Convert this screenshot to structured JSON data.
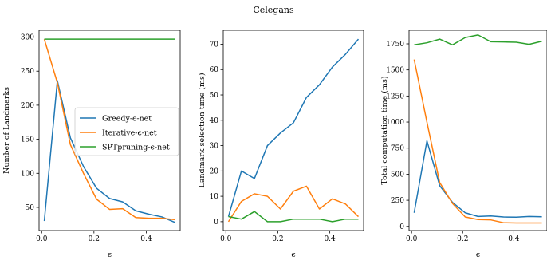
{
  "figure": {
    "title": "Celegans"
  },
  "colors": {
    "greedy": "#1f77b4",
    "iterative": "#ff7f0e",
    "spt": "#2ca02c"
  },
  "legend": {
    "placement": "center-right of first panel",
    "entries": [
      "Greedy-ϵ-net",
      "Iterative-ϵ-net",
      "SPTpruning-ϵ-net"
    ]
  },
  "chart_data": [
    {
      "type": "line",
      "title": "",
      "xlabel": "ϵ",
      "ylabel": "Number of Landmarks",
      "xlim": [
        -0.01,
        0.53
      ],
      "ylim": [
        16,
        310
      ],
      "xticks": [
        0.0,
        0.2,
        0.4
      ],
      "xtick_labels": [
        "0.0",
        "0.2",
        "0.4"
      ],
      "yticks": [
        50,
        100,
        150,
        200,
        250,
        300
      ],
      "ytick_labels": [
        "50",
        "100",
        "150",
        "200",
        "250",
        "300"
      ],
      "grid": false,
      "legend": true,
      "x": [
        0.01,
        0.06,
        0.11,
        0.16,
        0.21,
        0.26,
        0.31,
        0.36,
        0.41,
        0.46,
        0.51
      ],
      "series": [
        {
          "name": "Greedy-ϵ-net",
          "color_key": "greedy",
          "values": [
            30,
            236,
            152,
            110,
            78,
            63,
            58,
            45,
            40,
            36,
            28
          ]
        },
        {
          "name": "Iterative-ϵ-net",
          "color_key": "iterative",
          "values": [
            297,
            233,
            142,
            100,
            62,
            47,
            48,
            35,
            34,
            34,
            32
          ]
        },
        {
          "name": "SPTpruning-ϵ-net",
          "color_key": "spt",
          "values": [
            297,
            297,
            297,
            297,
            297,
            297,
            297,
            297,
            297,
            297,
            297
          ]
        }
      ]
    },
    {
      "type": "line",
      "title": "",
      "xlabel": "ϵ",
      "ylabel": "Landmark selection time (ms)",
      "xlim": [
        -0.01,
        0.53
      ],
      "ylim": [
        -3.5,
        75.5
      ],
      "xticks": [
        0.0,
        0.2,
        0.4
      ],
      "xtick_labels": [
        "0.0",
        "0.2",
        "0.4"
      ],
      "yticks": [
        0,
        10,
        20,
        30,
        40,
        50,
        60,
        70
      ],
      "ytick_labels": [
        "0",
        "10",
        "20",
        "30",
        "40",
        "50",
        "60",
        "70"
      ],
      "grid": false,
      "legend": false,
      "x": [
        0.01,
        0.06,
        0.11,
        0.16,
        0.21,
        0.26,
        0.31,
        0.36,
        0.41,
        0.46,
        0.51
      ],
      "series": [
        {
          "name": "Greedy-ϵ-net",
          "color_key": "greedy",
          "values": [
            2,
            20,
            17,
            30,
            35,
            39,
            49,
            54,
            61,
            66,
            72
          ]
        },
        {
          "name": "Iterative-ϵ-net",
          "color_key": "iterative",
          "values": [
            0,
            8,
            11,
            10,
            5,
            12,
            14,
            5,
            9,
            7,
            2
          ]
        },
        {
          "name": "SPTpruning-ϵ-net",
          "color_key": "spt",
          "values": [
            2,
            1,
            4,
            0,
            0,
            1,
            1,
            1,
            0,
            1,
            1
          ]
        }
      ]
    },
    {
      "type": "line",
      "title": "",
      "xlabel": "ϵ",
      "ylabel": "Total computation time (ms)",
      "xlim": [
        -0.01,
        0.53
      ],
      "ylim": [
        -40,
        1880
      ],
      "xticks": [
        0.0,
        0.2,
        0.4
      ],
      "xtick_labels": [
        "0.0",
        "0.2",
        "0.4"
      ],
      "yticks": [
        0,
        250,
        500,
        750,
        1000,
        1250,
        1500,
        1750
      ],
      "ytick_labels": [
        "0",
        "250",
        "500",
        "750",
        "1000",
        "1250",
        "1500",
        "1750"
      ],
      "grid": false,
      "legend": false,
      "x": [
        0.01,
        0.06,
        0.11,
        0.16,
        0.21,
        0.26,
        0.31,
        0.36,
        0.41,
        0.46,
        0.51
      ],
      "series": [
        {
          "name": "Greedy-ϵ-net",
          "color_key": "greedy",
          "values": [
            130,
            820,
            390,
            230,
            130,
            95,
            100,
            90,
            88,
            95,
            92
          ]
        },
        {
          "name": "Iterative-ϵ-net",
          "color_key": "iterative",
          "values": [
            1600,
            1000,
            420,
            220,
            90,
            65,
            62,
            35,
            33,
            33,
            33
          ]
        },
        {
          "name": "SPTpruning-ϵ-net",
          "color_key": "spt",
          "values": [
            1740,
            1760,
            1795,
            1740,
            1810,
            1835,
            1770,
            1768,
            1765,
            1745,
            1775
          ]
        }
      ]
    }
  ]
}
